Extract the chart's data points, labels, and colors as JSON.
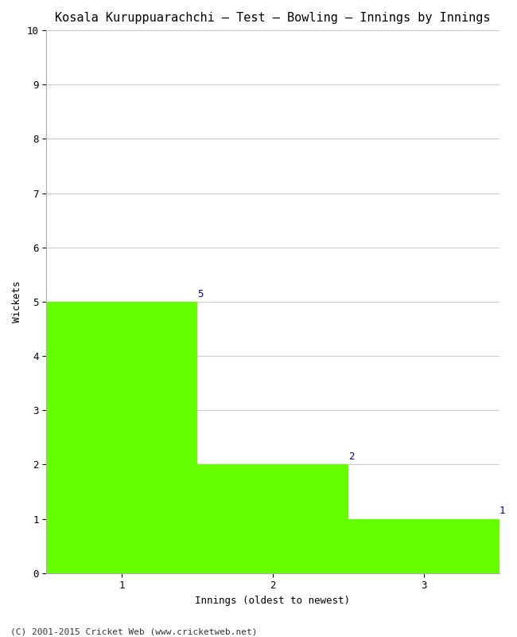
{
  "title": "Kosala Kuruppuarachchi – Test – Bowling – Innings by Innings",
  "xlabel": "Innings (oldest to newest)",
  "ylabel": "Wickets",
  "categories": [
    "1",
    "2",
    "3"
  ],
  "values": [
    5,
    2,
    1
  ],
  "bar_color": "#66ff00",
  "label_color": "#0000aa",
  "ylim": [
    0,
    10
  ],
  "yticks": [
    0,
    1,
    2,
    3,
    4,
    5,
    6,
    7,
    8,
    9,
    10
  ],
  "title_fontsize": 11,
  "label_fontsize": 9,
  "tick_fontsize": 9,
  "annotation_fontsize": 9,
  "footer": "(C) 2001-2015 Cricket Web (www.cricketweb.net)",
  "background_color": "#ffffff",
  "grid_color": "#cccccc",
  "bar_width": 1.0,
  "xlim": [
    0.5,
    3.5
  ]
}
